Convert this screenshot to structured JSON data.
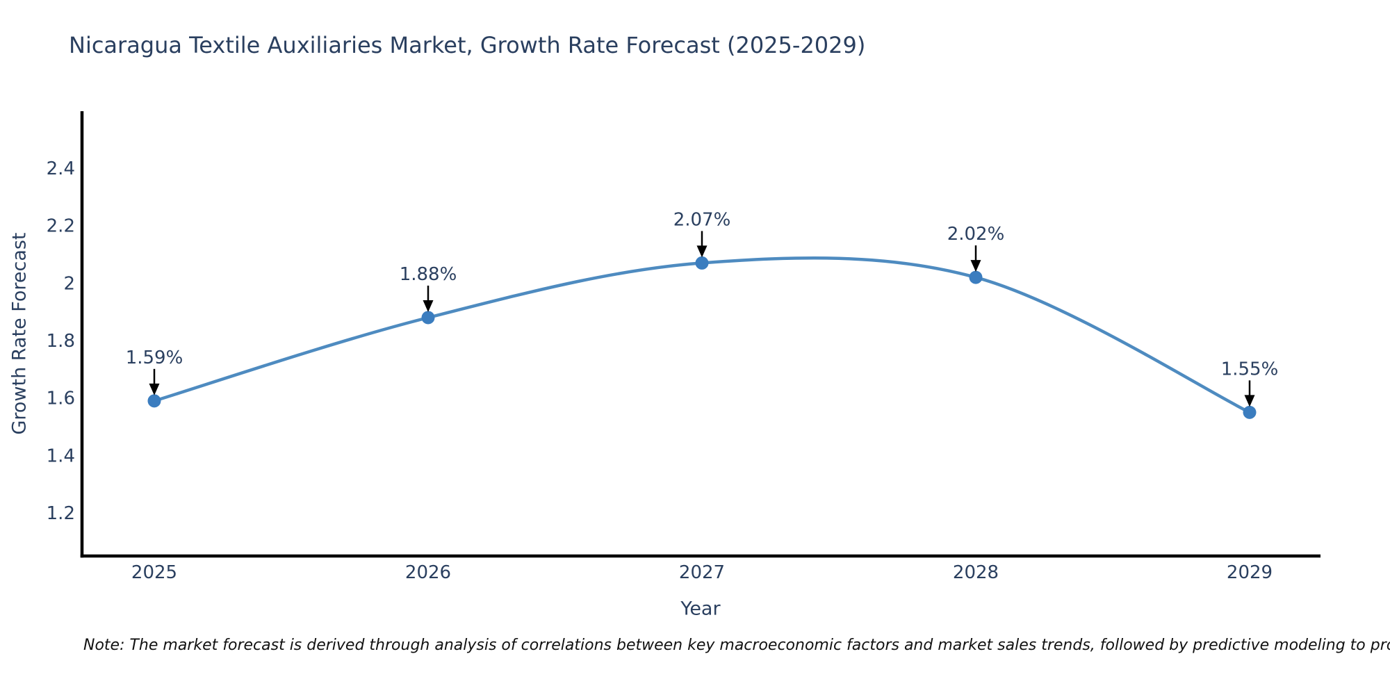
{
  "chart_data": {
    "type": "line",
    "curve": "spline",
    "title": "Nicaragua Textile Auxiliaries Market, Growth Rate Forecast (2025-2029)",
    "xlabel": "Year",
    "ylabel": "Growth Rate Forecast",
    "categories": [
      "2025",
      "2026",
      "2027",
      "2028",
      "2029"
    ],
    "series": [
      {
        "name": "Growth Rate Forecast",
        "values": [
          1.59,
          1.88,
          2.07,
          2.02,
          1.55
        ]
      }
    ],
    "point_labels": [
      "1.59%",
      "1.88%",
      "2.07%",
      "2.02%",
      "1.55%"
    ],
    "ytick_labels": [
      "1.2",
      "1.4",
      "1.6",
      "1.8",
      "2",
      "2.2",
      "2.4"
    ],
    "ytick_values": [
      1.2,
      1.4,
      1.6,
      1.8,
      2.0,
      2.2,
      2.4
    ],
    "ylim": [
      1.05,
      2.6
    ],
    "grid": false,
    "legend": "none",
    "annotations_have_arrows": true,
    "colors": {
      "line": "#4e8bc0",
      "marker": "#3b7dbf",
      "axis_spine": "#000000",
      "text": "#2a3f5f",
      "annotation_arrow": "#000000",
      "note_text": "#111111",
      "background": "#ffffff"
    },
    "note": "Note: The market forecast is derived through analysis of correlations between key macroeconomic factors and market sales trends, followed by predictive modeling to project future sales"
  }
}
